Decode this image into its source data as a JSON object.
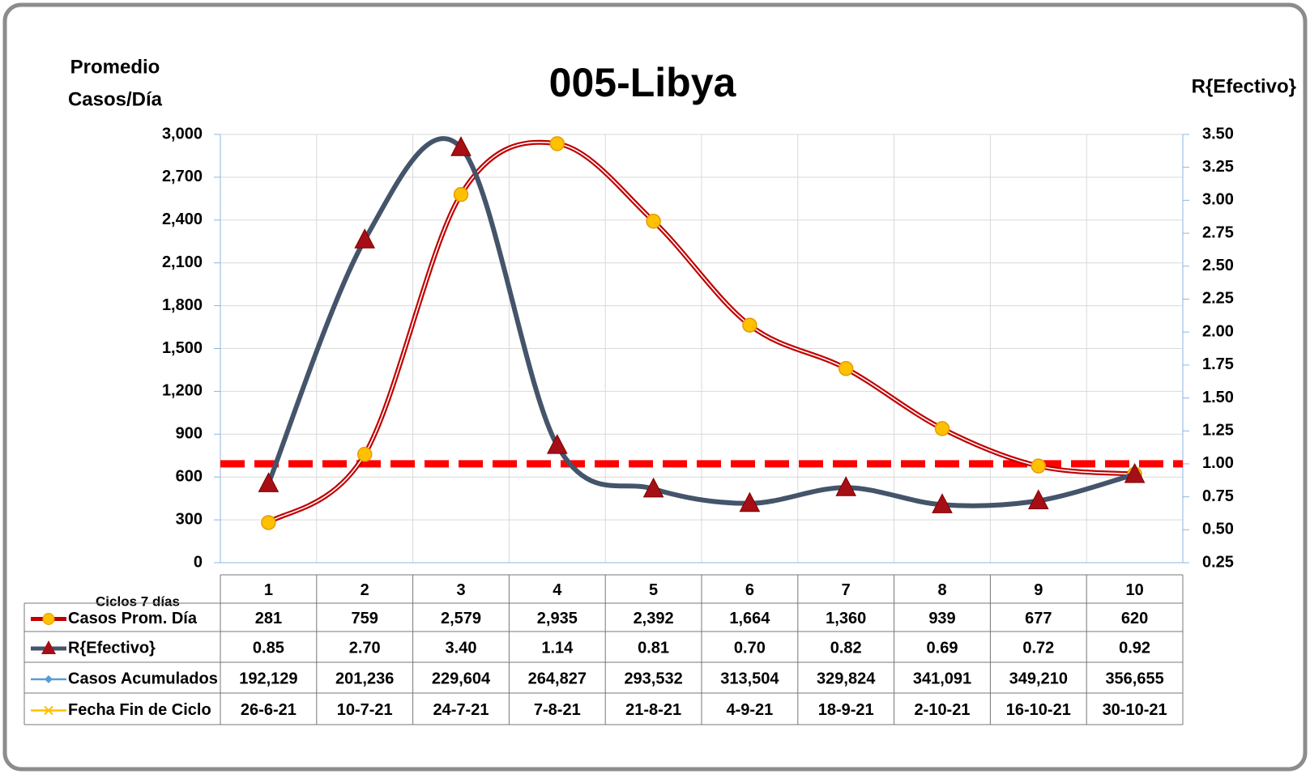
{
  "chart_data": {
    "type": "line",
    "title": "005-Libya",
    "ylabel": [
      "Promedio",
      "Casos/Día"
    ],
    "y2label": "R{Efectivo}",
    "xlabel": "Ciclos 7 días",
    "categories": [
      "1",
      "2",
      "3",
      "4",
      "5",
      "6",
      "7",
      "8",
      "9",
      "10"
    ],
    "series": [
      {
        "name": "Casos Prom. Día",
        "color": "#c00000",
        "marker_color": "#ffc000",
        "values": [
          281,
          759,
          2579,
          2935,
          2392,
          1664,
          1360,
          939,
          677,
          620
        ],
        "value_labels": [
          "281",
          "759",
          "2,579",
          "2,935",
          "2,392",
          "1,664",
          "1,360",
          "939",
          "677",
          "620"
        ]
      },
      {
        "name": "R{Efectivo}",
        "color": "#44546a",
        "marker_color": "#a50f15",
        "axis": "y2",
        "values": [
          0.85,
          2.7,
          3.4,
          1.14,
          0.81,
          0.7,
          0.82,
          0.69,
          0.72,
          0.92
        ],
        "value_labels": [
          "0.85",
          "2.70",
          "3.40",
          "1.14",
          "0.81",
          "0.70",
          "0.82",
          "0.69",
          "0.72",
          "0.92"
        ]
      },
      {
        "name": "Casos Acumulados",
        "color": "#5b9bd5",
        "values": [
          192129,
          201236,
          229604,
          264827,
          293532,
          313504,
          329824,
          341091,
          349210,
          356655
        ],
        "value_labels": [
          "192,129",
          "201,236",
          "229,604",
          "264,827",
          "293,532",
          "313,504",
          "329,824",
          "341,091",
          "349,210",
          "356,655"
        ]
      },
      {
        "name": "Fecha Fin de Ciclo",
        "color": "#ffc000",
        "values": [
          "26-6-21",
          "10-7-21",
          "24-7-21",
          "7-8-21",
          "21-8-21",
          "4-9-21",
          "18-9-21",
          "2-10-21",
          "16-10-21",
          "30-10-21"
        ]
      }
    ],
    "reference_line": {
      "value": 1,
      "axis": "y2",
      "color": "#ff0000"
    },
    "ylim": [
      0,
      3000
    ],
    "yticks": [
      0,
      300,
      600,
      900,
      {
        "value": 1200,
        "label": "1,200"
      },
      {
        "value": 1500,
        "label": "1,500"
      },
      {
        "value": 1800,
        "label": "1,800"
      },
      {
        "value": 2100,
        "label": "2,100"
      },
      {
        "value": 2400,
        "label": "2,400"
      },
      {
        "value": 2700,
        "label": "2,700"
      },
      {
        "value": 3000,
        "label": "3,000"
      }
    ],
    "y2lim": [
      0.25,
      3.5
    ],
    "y2ticks": [
      0.25,
      {
        "value": 0.5,
        "label": "0.50"
      },
      0.75,
      {
        "value": 1,
        "label": "1.00"
      },
      1.25,
      {
        "value": 1.5,
        "label": "1.50"
      },
      1.75,
      {
        "value": 2,
        "label": "2.00"
      },
      2.25,
      {
        "value": 2.5,
        "label": "2.50"
      },
      2.75,
      {
        "value": 3,
        "label": "3.00"
      },
      3.25,
      {
        "value": 3.5,
        "label": "3.50"
      }
    ],
    "grid": true
  }
}
